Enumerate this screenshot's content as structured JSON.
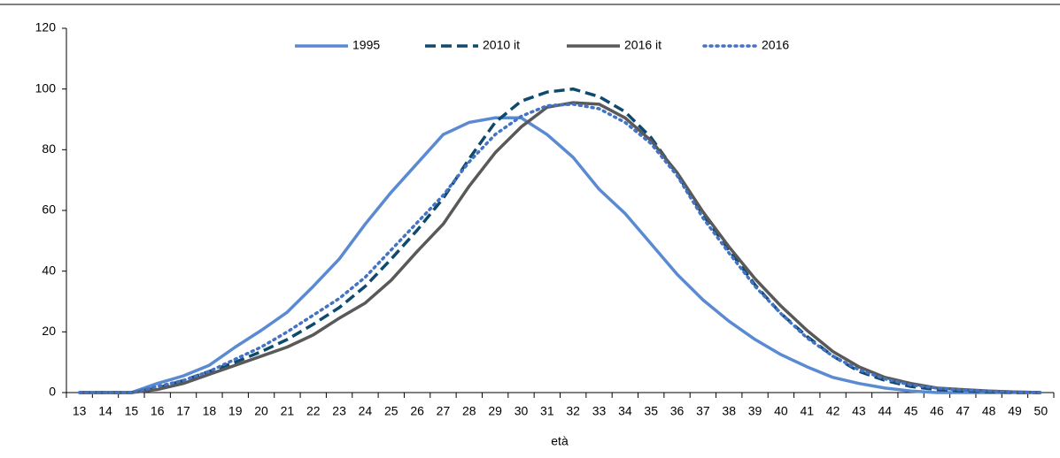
{
  "chart_data": {
    "type": "line",
    "x_label": "età",
    "categories": [
      "13",
      "14",
      "15",
      "16",
      "17",
      "18",
      "19",
      "20",
      "21",
      "22",
      "23",
      "24",
      "25",
      "26",
      "27",
      "28",
      "29",
      "30",
      "31",
      "32",
      "33",
      "34",
      "35",
      "36",
      "37",
      "38",
      "39",
      "40",
      "41",
      "42",
      "43",
      "44",
      "45",
      "46",
      "47",
      "48",
      "49",
      "50"
    ],
    "series": [
      {
        "name": "1995",
        "color": "#5a8ad2",
        "dash": "solid",
        "values": [
          0,
          0,
          0,
          3,
          5.5,
          9,
          15,
          20.5,
          26.5,
          35,
          44,
          55.5,
          66,
          75.5,
          85,
          89,
          90.5,
          90.5,
          85,
          77.5,
          67,
          59,
          49,
          39,
          30.5,
          23.5,
          17.5,
          12.5,
          8.5,
          5,
          3,
          1.5,
          0.5,
          0,
          0,
          0,
          0,
          0
        ]
      },
      {
        "name": "2010 it",
        "color": "#0e4a6e",
        "dash": "dashed",
        "values": [
          0,
          0,
          0,
          1.5,
          4,
          7,
          10,
          13.5,
          17.5,
          22.5,
          28,
          35,
          44,
          53.5,
          64,
          77,
          89,
          96,
          99,
          100,
          97.5,
          92.5,
          84,
          72,
          58.5,
          47,
          35.5,
          26,
          18.5,
          12,
          7,
          4,
          2,
          1,
          0.5,
          0.3,
          0,
          0
        ]
      },
      {
        "name": "2016 it",
        "color": "#595959",
        "dash": "solid",
        "values": [
          0,
          0,
          0,
          1,
          3,
          6,
          9,
          12,
          15,
          19,
          24.5,
          29.5,
          37,
          46.5,
          55.5,
          68,
          79,
          87.5,
          94,
          95.5,
          95,
          90.5,
          83,
          72.5,
          59.5,
          48,
          37.5,
          28.5,
          20.5,
          13.5,
          8.5,
          5,
          3,
          1.5,
          1,
          0.5,
          0.2,
          0
        ]
      },
      {
        "name": "2016",
        "color": "#4472c4",
        "dash": "dotted",
        "values": [
          0,
          0,
          0,
          2,
          4,
          7,
          11,
          15,
          20,
          25.5,
          31,
          38,
          47,
          56,
          65,
          76,
          85,
          91,
          94.5,
          95,
          93.5,
          89,
          82,
          71.5,
          57.5,
          46,
          35,
          26,
          18,
          12,
          7.5,
          4.5,
          2.5,
          1.5,
          0.8,
          0.5,
          0.2,
          0
        ]
      }
    ],
    "ylim": [
      0,
      120
    ],
    "yticks": [
      0,
      20,
      40,
      60,
      80,
      100,
      120
    ],
    "legend": "top"
  }
}
